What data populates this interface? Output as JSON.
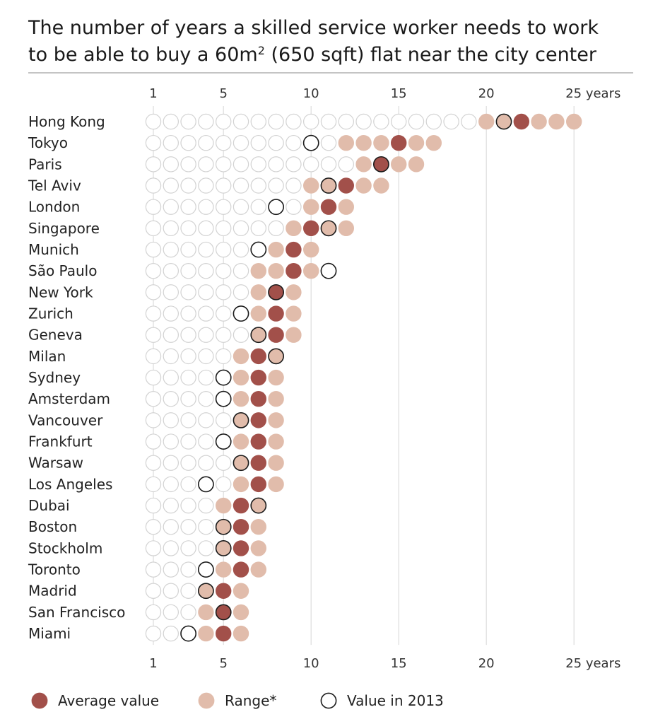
{
  "title_line1": "The number of years a skilled service worker needs to work",
  "title_line2_prefix": "to be able to buy a 60m",
  "title_superscript": "2",
  "title_line2_suffix": " (650 sqft) flat near the city center",
  "colors": {
    "average": "#a2504a",
    "range": "#e1bcab",
    "empty_stroke": "#d2d2d2",
    "value2013_stroke": "#1a1a1a",
    "gridline": "#dddddd",
    "divider": "#888888"
  },
  "legend": {
    "average_label": "Average value",
    "range_label": "Range*",
    "value2013_label": "Value in 2013"
  },
  "chart_data": {
    "type": "scatter",
    "x_unit": "years",
    "xlim": [
      1,
      25
    ],
    "grid": true,
    "x_ticks": [
      {
        "value": 1,
        "label": "1"
      },
      {
        "value": 5,
        "label": "5"
      },
      {
        "value": 10,
        "label": "10"
      },
      {
        "value": 15,
        "label": "15"
      },
      {
        "value": 20,
        "label": "20"
      },
      {
        "value": 25,
        "label": "25 years"
      }
    ],
    "legend_position": "bottom-left",
    "cities": [
      {
        "name": "Hong Kong",
        "range": [
          20,
          25
        ],
        "average": 22,
        "value_2013": 21
      },
      {
        "name": "Tokyo",
        "range": [
          12,
          17
        ],
        "average": 15,
        "value_2013": 10
      },
      {
        "name": "Paris",
        "range": [
          13,
          16
        ],
        "average": 14,
        "value_2013": 14
      },
      {
        "name": "Tel Aviv",
        "range": [
          10,
          14
        ],
        "average": 12,
        "value_2013": 11
      },
      {
        "name": "London",
        "range": [
          10,
          12
        ],
        "average": 11,
        "value_2013": 8
      },
      {
        "name": "Singapore",
        "range": [
          9,
          12
        ],
        "average": 10,
        "value_2013": 11
      },
      {
        "name": "Munich",
        "range": [
          8,
          10
        ],
        "average": 9,
        "value_2013": 7
      },
      {
        "name": "São Paulo",
        "range": [
          7,
          10
        ],
        "average": 9,
        "value_2013": 11
      },
      {
        "name": "New York",
        "range": [
          7,
          9
        ],
        "average": 8,
        "value_2013": 8
      },
      {
        "name": "Zurich",
        "range": [
          7,
          9
        ],
        "average": 8,
        "value_2013": 6
      },
      {
        "name": "Geneva",
        "range": [
          7,
          9
        ],
        "average": 8,
        "value_2013": 7
      },
      {
        "name": "Milan",
        "range": [
          6,
          8
        ],
        "average": 7,
        "value_2013": 8
      },
      {
        "name": "Sydney",
        "range": [
          6,
          8
        ],
        "average": 7,
        "value_2013": 5
      },
      {
        "name": "Amsterdam",
        "range": [
          6,
          8
        ],
        "average": 7,
        "value_2013": 5
      },
      {
        "name": "Vancouver",
        "range": [
          6,
          8
        ],
        "average": 7,
        "value_2013": 6
      },
      {
        "name": "Frankfurt",
        "range": [
          6,
          8
        ],
        "average": 7,
        "value_2013": 5
      },
      {
        "name": "Warsaw",
        "range": [
          6,
          8
        ],
        "average": 7,
        "value_2013": 6
      },
      {
        "name": "Los Angeles",
        "range": [
          6,
          8
        ],
        "average": 7,
        "value_2013": 4
      },
      {
        "name": "Dubai",
        "range": [
          5,
          7
        ],
        "average": 6,
        "value_2013": 7
      },
      {
        "name": "Boston",
        "range": [
          5,
          7
        ],
        "average": 6,
        "value_2013": 5
      },
      {
        "name": "Stockholm",
        "range": [
          5,
          7
        ],
        "average": 6,
        "value_2013": 5
      },
      {
        "name": "Toronto",
        "range": [
          5,
          7
        ],
        "average": 6,
        "value_2013": 4
      },
      {
        "name": "Madrid",
        "range": [
          4,
          6
        ],
        "average": 5,
        "value_2013": 4
      },
      {
        "name": "San Francisco",
        "range": [
          4,
          6
        ],
        "average": 5,
        "value_2013": 5
      },
      {
        "name": "Miami",
        "range": [
          4,
          6
        ],
        "average": 5,
        "value_2013": 3
      }
    ]
  }
}
